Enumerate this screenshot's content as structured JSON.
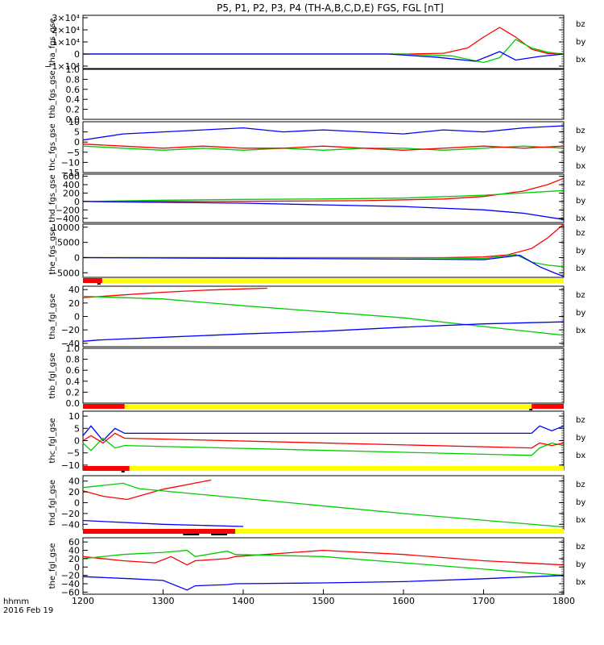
{
  "title": "P5, P1, P2, P3, P4 (TH-A,B,C,D,E) FGS, FGL [nT]",
  "corner": {
    "line1": "hhmm",
    "line2": "2016 Feb 19"
  },
  "colors": {
    "bz": "#ff0000",
    "by": "#00cc00",
    "bx": "#0000ff",
    "bar_yellow": "#ffff00",
    "bar_red": "#ff0000",
    "axis": "#000000"
  },
  "chart_data": {
    "type": "line",
    "x_ticks": [
      "1200",
      "1300",
      "1400",
      "1500",
      "1600",
      "1700",
      "1800"
    ],
    "xlim": [
      1200,
      1800
    ],
    "panels": [
      {
        "name": "tha-fgs",
        "ylabel": "tha_fgs_gse",
        "ylim": [
          -12000,
          32000
        ],
        "ticks": [
          {
            "v": 30000,
            "t": "3×10⁴"
          },
          {
            "v": 20000,
            "t": "2×10⁴"
          },
          {
            "v": 10000,
            "t": "1×10⁴"
          },
          {
            "v": 0,
            "t": "0"
          },
          {
            "v": -10000,
            "t": "−1×10⁴"
          }
        ],
        "legend": [
          "bz",
          "by",
          "bx"
        ],
        "series": [
          {
            "name": "bz",
            "x": [
              1200,
              1600,
              1650,
              1680,
              1700,
              1720,
              1740,
              1760,
              1780,
              1800
            ],
            "y": [
              0,
              0,
              600,
              5000,
              14000,
              22000,
              14000,
              4000,
              500,
              0
            ]
          },
          {
            "name": "by",
            "x": [
              1200,
              1600,
              1660,
              1700,
              1720,
              1740,
              1760,
              1780,
              1800
            ],
            "y": [
              0,
              0,
              -1500,
              -7000,
              -3000,
              12000,
              5000,
              1500,
              0
            ]
          },
          {
            "name": "bx",
            "x": [
              1200,
              1580,
              1640,
              1690,
              1720,
              1740,
              1770,
              1800
            ],
            "y": [
              0,
              0,
              -2500,
              -6000,
              2000,
              -5000,
              -2000,
              0
            ]
          }
        ]
      },
      {
        "name": "thb-fgs",
        "ylabel": "thb_fgs_gse",
        "ylim": [
          0,
          1
        ],
        "ticks": [
          {
            "v": 1,
            "t": "1.0"
          },
          {
            "v": 0.8,
            "t": "0.8"
          },
          {
            "v": 0.6,
            "t": "0.6"
          },
          {
            "v": 0.4,
            "t": "0.4"
          },
          {
            "v": 0.2,
            "t": "0.2"
          },
          {
            "v": 0,
            "t": "0.0"
          }
        ],
        "legend": [],
        "series": []
      },
      {
        "name": "thc-fgs",
        "ylabel": "thc_fgs_gse",
        "ylim": [
          -15,
          10
        ],
        "ticks": [
          {
            "v": 10,
            "t": "10"
          },
          {
            "v": 5,
            "t": "5"
          },
          {
            "v": 0,
            "t": "0"
          },
          {
            "v": -5,
            "t": "−5"
          },
          {
            "v": -10,
            "t": "−10"
          },
          {
            "v": -15,
            "t": "−15"
          }
        ],
        "legend": [
          "bz",
          "by",
          "bx"
        ],
        "series": [
          {
            "name": "bx",
            "x": [
              1200,
              1250,
              1300,
              1350,
              1400,
              1450,
              1500,
              1550,
              1600,
              1650,
              1700,
              1750,
              1800
            ],
            "y": [
              1,
              4,
              5,
              6,
              7,
              5,
              6,
              5,
              4,
              6,
              5,
              7,
              8
            ]
          },
          {
            "name": "by",
            "x": [
              1200,
              1250,
              1300,
              1350,
              1400,
              1450,
              1500,
              1550,
              1600,
              1650,
              1700,
              1750,
              1800
            ],
            "y": [
              -2,
              -3,
              -4,
              -3,
              -4,
              -3,
              -4,
              -3,
              -3,
              -4,
              -3,
              -2,
              -3
            ]
          },
          {
            "name": "bz",
            "x": [
              1200,
              1250,
              1300,
              1350,
              1400,
              1450,
              1500,
              1550,
              1600,
              1650,
              1700,
              1750,
              1800
            ],
            "y": [
              -1,
              -2,
              -3,
              -2,
              -3,
              -3,
              -2,
              -3,
              -4,
              -3,
              -2,
              -3,
              -2
            ]
          }
        ]
      },
      {
        "name": "thd-fgs",
        "ylabel": "thd_fgs_gse",
        "ylim": [
          -500,
          650
        ],
        "ticks": [
          {
            "v": 600,
            "t": "600"
          },
          {
            "v": 400,
            "t": "400"
          },
          {
            "v": 200,
            "t": "200"
          },
          {
            "v": 0,
            "t": "0"
          },
          {
            "v": -200,
            "t": "−200"
          },
          {
            "v": -400,
            "t": "−400"
          }
        ],
        "legend": [
          "bz",
          "by",
          "bx"
        ],
        "series": [
          {
            "name": "bz",
            "x": [
              1200,
              1400,
              1550,
              1650,
              1700,
              1750,
              1780,
              1800
            ],
            "y": [
              0,
              5,
              20,
              60,
              120,
              250,
              400,
              550
            ]
          },
          {
            "name": "by",
            "x": [
              1200,
              1300,
              1400,
              1500,
              1600,
              1700,
              1800
            ],
            "y": [
              0,
              30,
              50,
              60,
              80,
              150,
              260
            ]
          },
          {
            "name": "bx",
            "x": [
              1200,
              1300,
              1400,
              1500,
              1600,
              1700,
              1750,
              1800
            ],
            "y": [
              0,
              -20,
              -40,
              -80,
              -120,
              -200,
              -280,
              -430
            ]
          }
        ]
      },
      {
        "name": "the-fgs",
        "ylabel": "the_fgs_gse",
        "ylim": [
          -6500,
          11000
        ],
        "ticks": [
          {
            "v": 10000,
            "t": "10000"
          },
          {
            "v": 5000,
            "t": "5000"
          },
          {
            "v": 0,
            "t": "0"
          },
          {
            "v": -5000,
            "t": "−5000"
          }
        ],
        "legend": [
          "bz",
          "by",
          "bx"
        ],
        "series": [
          {
            "name": "bz",
            "x": [
              1200,
              1650,
              1700,
              1730,
              1760,
              1780,
              1800
            ],
            "y": [
              0,
              0,
              200,
              900,
              3000,
              6500,
              11000
            ]
          },
          {
            "name": "by",
            "x": [
              1200,
              1600,
              1700,
              1740,
              1760,
              1780,
              1800
            ],
            "y": [
              0,
              0,
              -300,
              1000,
              -1500,
              -2500,
              -3000
            ]
          },
          {
            "name": "bx",
            "x": [
              1200,
              1620,
              1700,
              1745,
              1770,
              1790,
              1800
            ],
            "y": [
              0,
              -500,
              -700,
              800,
              -3000,
              -5200,
              -6200
            ]
          }
        ]
      },
      {
        "name": "tha-fgl",
        "ylabel": "tha_fgl_gse",
        "ylim": [
          -45,
          45
        ],
        "ticks": [
          {
            "v": 40,
            "t": "40"
          },
          {
            "v": 20,
            "t": "20"
          },
          {
            "v": 0,
            "t": "0"
          },
          {
            "v": -20,
            "t": "−20"
          },
          {
            "v": -40,
            "t": "−40"
          }
        ],
        "legend": [
          "bz",
          "by",
          "bx"
        ],
        "bar": {
          "yellow": [
            1200,
            1800
          ],
          "red": [
            [
              1200,
              1224
            ]
          ],
          "black": [
            [
              1218,
              1222
            ]
          ]
        },
        "series": [
          {
            "name": "bz",
            "x": [
              1200,
              1250,
              1300,
              1350,
              1400,
              1430
            ],
            "y": [
              28,
              32,
              36,
              39,
              41,
              42
            ]
          },
          {
            "name": "by",
            "x": [
              1200,
              1300,
              1400,
              1500,
              1600,
              1700,
              1800
            ],
            "y": [
              30,
              26,
              16,
              7,
              -2,
              -15,
              -28
            ]
          },
          {
            "name": "bx",
            "x": [
              1200,
              1220,
              1300,
              1400,
              1500,
              1600,
              1700,
              1800
            ],
            "y": [
              -37,
              -35,
              -31,
              -26,
              -22,
              -16,
              -11,
              -8
            ]
          }
        ]
      },
      {
        "name": "thb-fgl",
        "ylabel": "thb_fgl_gse",
        "ylim": [
          0,
          1
        ],
        "ticks": [
          {
            "v": 1,
            "t": "1.0"
          },
          {
            "v": 0.8,
            "t": "0.8"
          },
          {
            "v": 0.6,
            "t": "0.6"
          },
          {
            "v": 0.4,
            "t": "0.4"
          },
          {
            "v": 0.2,
            "t": "0.2"
          },
          {
            "v": 0,
            "t": "0.0"
          }
        ],
        "legend": [],
        "series": []
      },
      {
        "name": "thc-fgl",
        "ylabel": "thc_fgl_gse",
        "ylim": [
          -12,
          12
        ],
        "ticks": [
          {
            "v": 10,
            "t": "10"
          },
          {
            "v": 5,
            "t": "5"
          },
          {
            "v": 0,
            "t": "0"
          },
          {
            "v": -5,
            "t": "−5"
          },
          {
            "v": -10,
            "t": "−10"
          }
        ],
        "legend": [
          "bz",
          "by",
          "bx"
        ],
        "bar": {
          "yellow": [
            1200,
            1800
          ],
          "red": [
            [
              1200,
              1252
            ],
            [
              1760,
              1800
            ]
          ],
          "black": [
            [
              1757,
              1761
            ]
          ]
        },
        "series": [
          {
            "name": "bx",
            "x": [
              1200,
              1210,
              1225,
              1240,
              1252,
              1760,
              1770,
              1785,
              1800
            ],
            "y": [
              2,
              6,
              0,
              5,
              3,
              3,
              6,
              4,
              6
            ]
          },
          {
            "name": "by",
            "x": [
              1200,
              1210,
              1225,
              1240,
              1252,
              1760,
              1770,
              1785,
              1800
            ],
            "y": [
              -1,
              -4,
              1,
              -3,
              -2,
              -6,
              -3,
              -1,
              -2
            ]
          },
          {
            "name": "bz",
            "x": [
              1200,
              1210,
              1225,
              1240,
              1252,
              1760,
              1770,
              1785,
              1800
            ],
            "y": [
              0,
              2,
              -1,
              3,
              1,
              -3,
              -1,
              -2,
              -1
            ]
          }
        ]
      },
      {
        "name": "thd-fgl",
        "ylabel": "thd_fgl_gse",
        "ylim": [
          -50,
          50
        ],
        "ticks": [
          {
            "v": 40,
            "t": "40"
          },
          {
            "v": 20,
            "t": "20"
          },
          {
            "v": 0,
            "t": "0"
          },
          {
            "v": -20,
            "t": "−20"
          },
          {
            "v": -40,
            "t": "−40"
          }
        ],
        "legend": [
          "bz",
          "by",
          "bx"
        ],
        "bar": {
          "yellow": [
            1200,
            1800
          ],
          "red": [
            [
              1200,
              1258
            ]
          ],
          "black": [
            [
              1248,
              1252
            ]
          ]
        },
        "series": [
          {
            "name": "bz",
            "x": [
              1200,
              1225,
              1255,
              1300,
              1360
            ],
            "y": [
              22,
              12,
              6,
              25,
              42
            ]
          },
          {
            "name": "by",
            "x": [
              1200,
              1250,
              1270,
              1400,
              1600,
              1800
            ],
            "y": [
              28,
              36,
              26,
              8,
              -20,
              -45
            ]
          },
          {
            "name": "bx",
            "x": [
              1200,
              1300,
              1400
            ],
            "y": [
              -33,
              -40,
              -44
            ]
          }
        ]
      },
      {
        "name": "the-fgl",
        "ylabel": "the_fgl_gse",
        "ylim": [
          -65,
          70
        ],
        "ticks": [
          {
            "v": 60,
            "t": "60"
          },
          {
            "v": 40,
            "t": "40"
          },
          {
            "v": 20,
            "t": "20"
          },
          {
            "v": 0,
            "t": "0"
          },
          {
            "v": -20,
            "t": "−20"
          },
          {
            "v": -40,
            "t": "−40"
          },
          {
            "v": -60,
            "t": "−60"
          }
        ],
        "legend": [
          "bz",
          "by",
          "bx"
        ],
        "bar": {
          "yellow": [
            1200,
            1800
          ],
          "red": [
            [
              1200,
              1390
            ]
          ],
          "black": [
            [
              1325,
              1345
            ],
            [
              1360,
              1380
            ]
          ]
        },
        "series": [
          {
            "name": "bz",
            "x": [
              1200,
              1250,
              1290,
              1310,
              1330,
              1340,
              1380,
              1390,
              1500,
              1600,
              1700,
              1800
            ],
            "y": [
              25,
              15,
              10,
              25,
              5,
              15,
              20,
              25,
              40,
              30,
              15,
              5
            ]
          },
          {
            "name": "by",
            "x": [
              1200,
              1250,
              1300,
              1330,
              1340,
              1380,
              1390,
              1500,
              1600,
              1700,
              1800
            ],
            "y": [
              20,
              30,
              35,
              40,
              25,
              38,
              30,
              25,
              10,
              -5,
              -20
            ]
          },
          {
            "name": "bx",
            "x": [
              1200,
              1260,
              1300,
              1330,
              1340,
              1380,
              1390,
              1500,
              1600,
              1700,
              1800
            ],
            "y": [
              -23,
              -28,
              -32,
              -55,
              -45,
              -42,
              -40,
              -38,
              -35,
              -28,
              -20
            ]
          }
        ]
      }
    ]
  }
}
